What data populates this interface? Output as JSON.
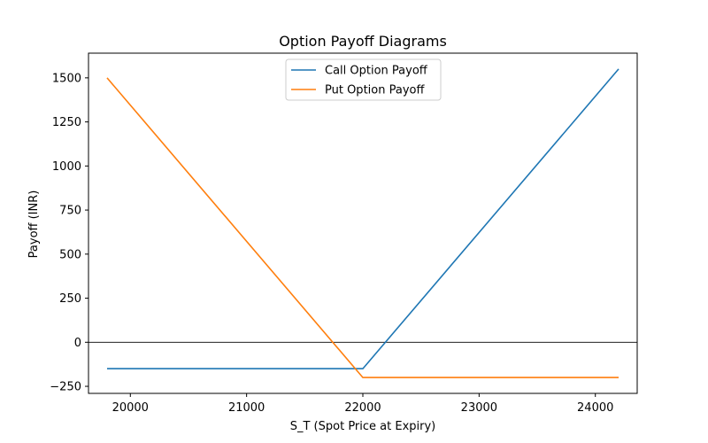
{
  "chart_data": {
    "type": "line",
    "title": "Option Payoff Diagrams",
    "xlabel": "S_T (Spot Price at Expiry)",
    "ylabel": "Payoff (INR)",
    "xlim": [
      19640,
      24360
    ],
    "ylim": [
      -290,
      1640
    ],
    "xticks": [
      20000,
      21000,
      22000,
      23000,
      24000
    ],
    "yticks": [
      -250,
      0,
      250,
      500,
      750,
      1000,
      1250,
      1500
    ],
    "grid": false,
    "legend_position": "top-center",
    "reference_line": {
      "y": 0,
      "color": "#000000"
    },
    "series": [
      {
        "name": "Call Option Payoff",
        "color": "#1f77b4",
        "x": [
          19800,
          22000,
          24200
        ],
        "y": [
          -150,
          -150,
          1550
        ]
      },
      {
        "name": "Put Option Payoff",
        "color": "#ff7f0e",
        "x": [
          19800,
          22000,
          24200
        ],
        "y": [
          1500,
          -200,
          -200
        ]
      }
    ]
  }
}
